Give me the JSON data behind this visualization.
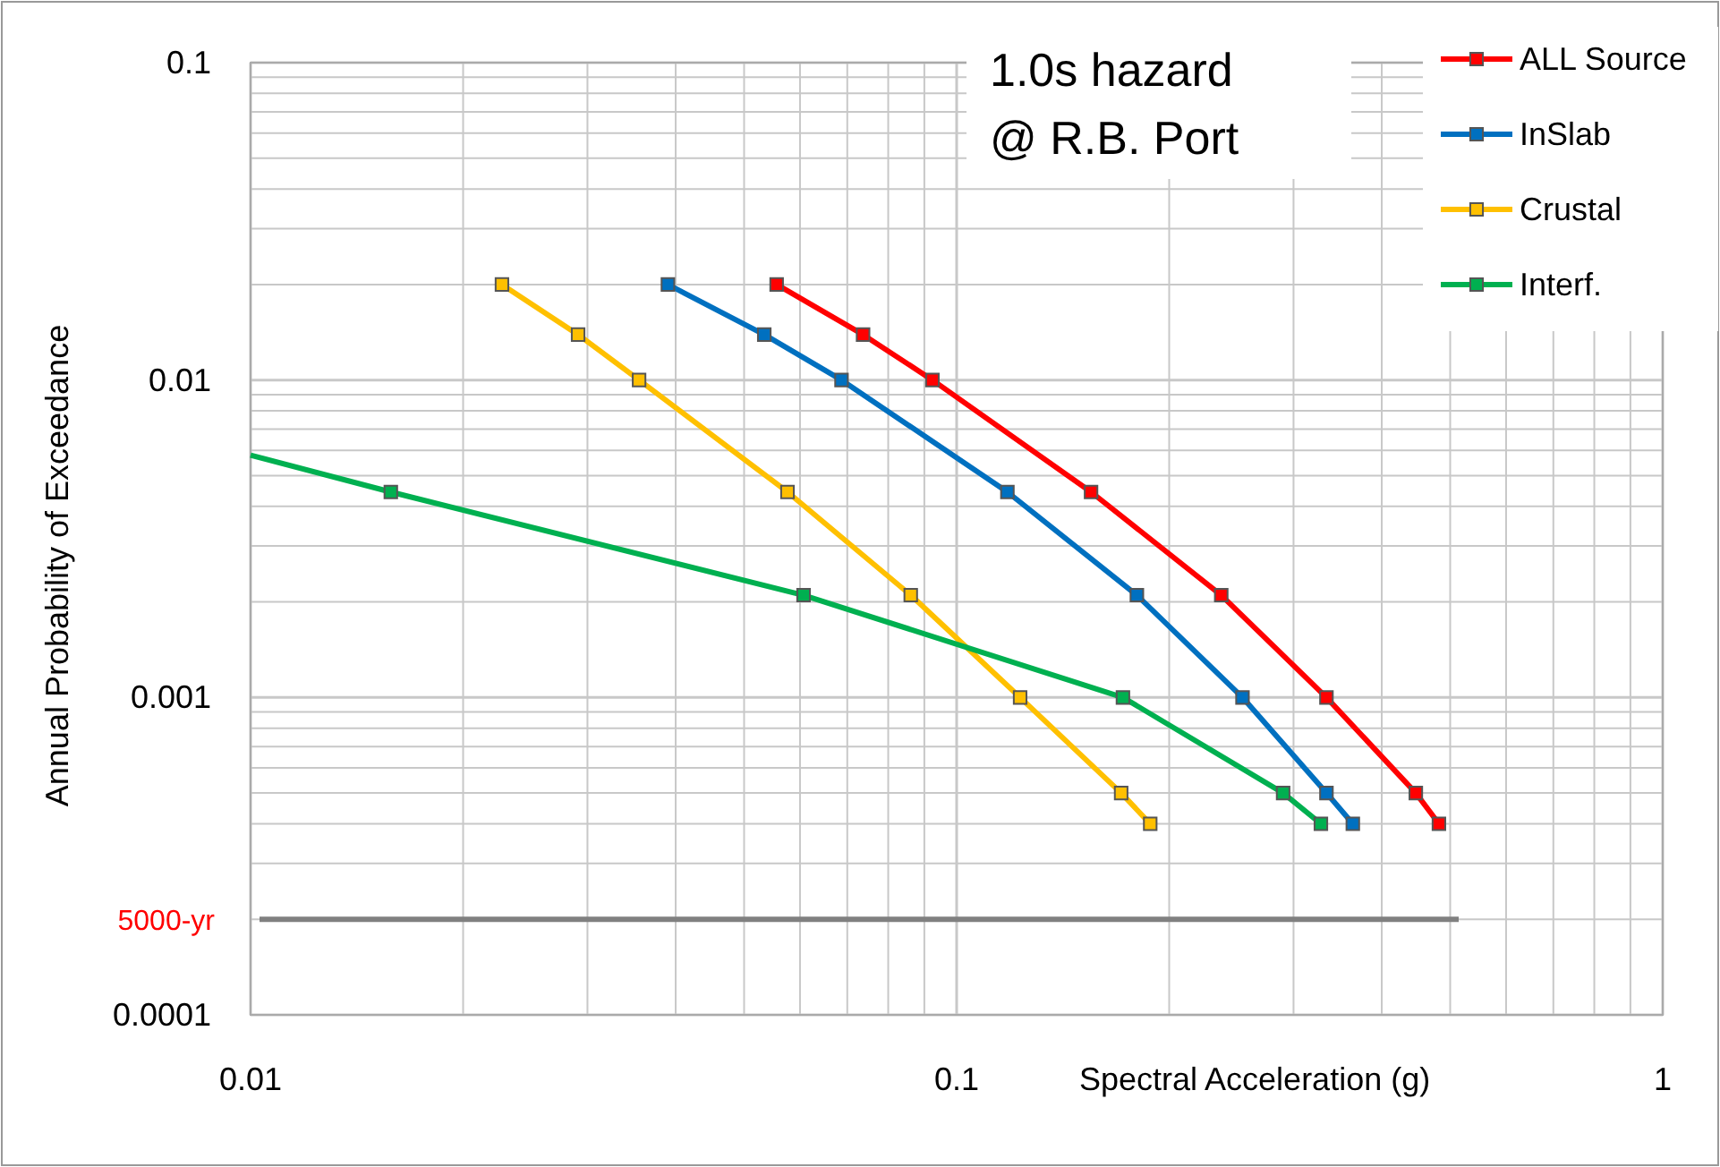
{
  "chart_data": {
    "type": "line",
    "log": "xy",
    "xlabel": "Spectral Acceleration (g)",
    "ylabel": "Annual Probability of Exceedance",
    "annotations": [
      "1.0s   hazard",
      "@ R.B. Port"
    ],
    "xlim": [
      0.01,
      1
    ],
    "ylim": [
      0.0001,
      0.1
    ],
    "xticks": [
      0.01,
      {
        "value": 0.02,
        "label": null
      },
      {
        "value": 0.03,
        "label": null
      },
      {
        "value": 0.04,
        "label": null
      },
      {
        "value": 0.05,
        "label": null
      },
      {
        "value": 0.06,
        "label": null
      },
      {
        "value": 0.07,
        "label": null
      },
      {
        "value": 0.08,
        "label": null
      },
      {
        "value": 0.09,
        "label": null
      },
      0.1,
      {
        "value": 0.2,
        "label": null
      },
      {
        "value": 0.3,
        "label": null
      },
      {
        "value": 0.4,
        "label": null
      },
      {
        "value": 0.5,
        "label": null
      },
      {
        "value": 0.6,
        "label": null
      },
      {
        "value": 0.7,
        "label": null
      },
      {
        "value": 0.8,
        "label": null
      },
      {
        "value": 0.9,
        "label": null
      },
      1
    ],
    "yticks": [
      0.0001,
      {
        "value": 0.0002,
        "label": null
      },
      {
        "value": 0.0003,
        "label": null
      },
      {
        "value": 0.0004,
        "label": null
      },
      {
        "value": 0.0005,
        "label": null
      },
      {
        "value": 0.0006,
        "label": null
      },
      {
        "value": 0.0007,
        "label": null
      },
      {
        "value": 0.0008,
        "label": null
      },
      {
        "value": 0.0009,
        "label": null
      },
      0.001,
      {
        "value": 0.002,
        "label": null
      },
      {
        "value": 0.003,
        "label": null
      },
      {
        "value": 0.004,
        "label": null
      },
      {
        "value": 0.005,
        "label": null
      },
      {
        "value": 0.006,
        "label": null
      },
      {
        "value": 0.007,
        "label": null
      },
      {
        "value": 0.008,
        "label": null
      },
      {
        "value": 0.009,
        "label": null
      },
      0.01,
      {
        "value": 0.02,
        "label": null
      },
      {
        "value": 0.03,
        "label": null
      },
      {
        "value": 0.04,
        "label": null
      },
      {
        "value": 0.05,
        "label": null
      },
      {
        "value": 0.06,
        "label": null
      },
      {
        "value": 0.07,
        "label": null
      },
      {
        "value": 0.08,
        "label": null
      },
      {
        "value": 0.09,
        "label": null
      },
      0.1
    ],
    "grid": true,
    "legend": "top right",
    "marker": "square",
    "line_style": "solid",
    "ref_lines": [
      {
        "axis": "y",
        "value": 0.0002,
        "label": "5000-yr",
        "color": "#808080"
      }
    ],
    "series": [
      {
        "name": "ALL Source",
        "color": "#ff0000",
        "x": [
          0.0556,
          0.0737,
          0.0924,
          0.155,
          0.237,
          0.334,
          0.447,
          0.482
        ],
        "values": [
          0.02,
          0.0139,
          0.01,
          0.00444,
          0.0021,
          0.001,
          0.0005,
          0.0004
        ]
      },
      {
        "name": "InSlab",
        "color": "#0070c0",
        "x": [
          0.039,
          0.0534,
          0.0687,
          0.118,
          0.18,
          0.254,
          0.334,
          0.364
        ],
        "values": [
          0.02,
          0.0139,
          0.01,
          0.00444,
          0.0021,
          0.001,
          0.0005,
          0.0004
        ]
      },
      {
        "name": "Crustal",
        "color": "#ffc000",
        "x": [
          0.0227,
          0.0291,
          0.0355,
          0.0576,
          0.0861,
          0.123,
          0.171,
          0.188
        ],
        "values": [
          0.02,
          0.0139,
          0.01,
          0.00444,
          0.0021,
          0.001,
          0.0005,
          0.0004
        ]
      },
      {
        "name": "Interf.",
        "color": "#00b050",
        "x": [
          0.01,
          0.0158,
          0.0607,
          0.172,
          0.29,
          0.328
        ],
        "values": [
          0.0058,
          0.00444,
          0.0021,
          0.001,
          0.0005,
          0.0004
        ]
      }
    ]
  }
}
